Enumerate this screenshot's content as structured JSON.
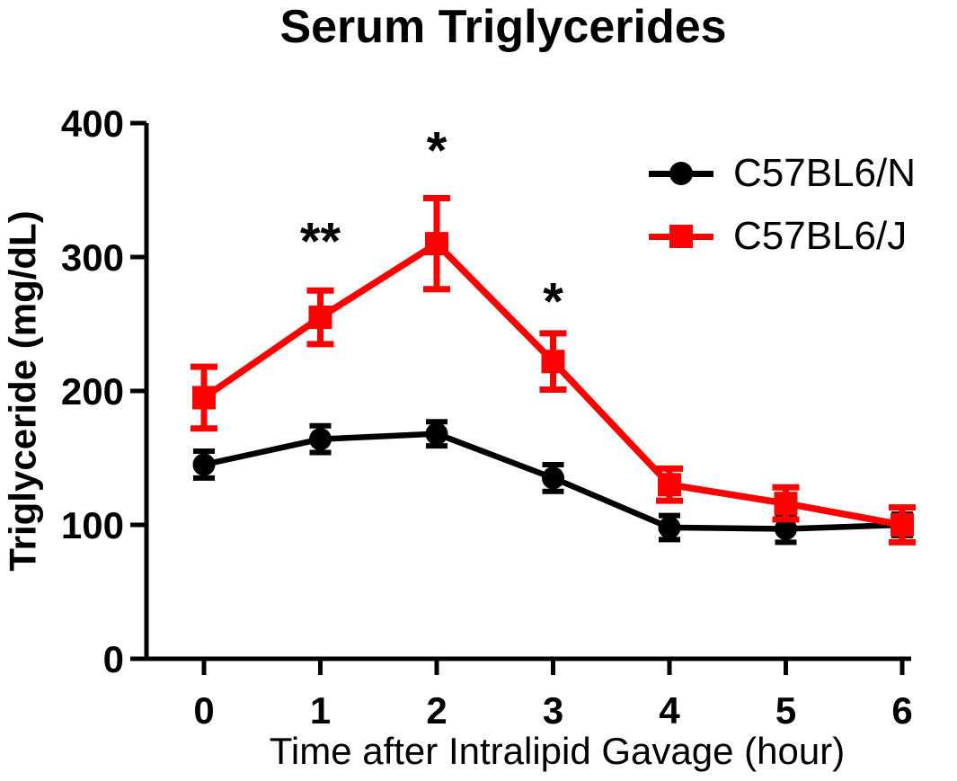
{
  "chart_data": {
    "type": "line",
    "title": "Serum Triglycerides",
    "xlabel": "Time after Intralipid Gavage (hour)",
    "ylabel": "Triglyceride (mg/dL)",
    "x": [
      0,
      1,
      2,
      3,
      4,
      5,
      6
    ],
    "xticks": [
      0,
      1,
      2,
      3,
      4,
      5,
      6
    ],
    "yticks": [
      0,
      100,
      200,
      300,
      400
    ],
    "xlim": [
      -0.5,
      6.1
    ],
    "ylim": [
      0,
      400
    ],
    "grid": false,
    "legend_position": "top-right",
    "series": [
      {
        "name": "C57BL6/N",
        "color": "#000000",
        "marker": "circle",
        "values": [
          145,
          164,
          168,
          135,
          98,
          97,
          100
        ],
        "errors": [
          10,
          10,
          9,
          10,
          9,
          10,
          8
        ]
      },
      {
        "name": "C57BL6/J",
        "color": "#ff0000",
        "marker": "square",
        "values": [
          195,
          255,
          310,
          222,
          130,
          116,
          100
        ],
        "errors": [
          23,
          20,
          34,
          21,
          12,
          12,
          13
        ]
      }
    ],
    "annotations": [
      {
        "x": 1,
        "y": 317,
        "label": "**"
      },
      {
        "x": 2,
        "y": 385,
        "label": "*"
      },
      {
        "x": 3,
        "y": 272,
        "label": "*"
      }
    ]
  }
}
